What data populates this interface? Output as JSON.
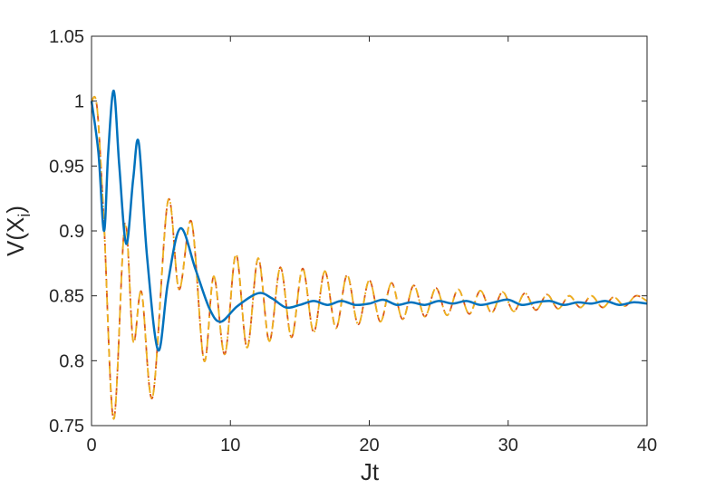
{
  "chart_data": {
    "type": "line",
    "xlabel": "Jt",
    "ylabel": {
      "base": "V(X",
      "sub": "i",
      "close": ")"
    },
    "xlim": [
      0,
      40
    ],
    "xticks": [
      0,
      10,
      20,
      30,
      40
    ],
    "ylim": [
      0.75,
      1.05
    ],
    "yticks": [
      0.75,
      0.8,
      0.85,
      0.9,
      0.95,
      1,
      1.05
    ],
    "series": [
      {
        "color": "#d95319",
        "style": "dashed",
        "x": [
          0,
          0.4,
          0.9,
          1.6,
          2.4,
          3.0,
          3.6,
          4.4,
          5.5,
          6.3,
          7.2,
          8.1,
          8.8,
          9.6,
          10.4,
          11.2,
          12.0,
          12.8,
          13.6,
          14.4,
          15.2,
          16.0,
          16.8,
          17.6,
          18.4,
          19.2,
          20.0,
          20.8,
          21.6,
          22.4,
          23.2,
          24.0,
          24.8,
          25.6,
          26.4,
          27.2,
          28.0,
          28.8,
          29.6,
          30.4,
          31.2,
          32.0,
          32.8,
          33.6,
          34.4,
          35.2,
          36.0,
          36.8,
          37.6,
          38.4,
          39.2,
          40
        ],
        "values": [
          1.0,
          0.995,
          0.905,
          0.755,
          0.905,
          0.815,
          0.853,
          0.772,
          0.923,
          0.855,
          0.907,
          0.8,
          0.865,
          0.805,
          0.882,
          0.81,
          0.879,
          0.815,
          0.872,
          0.818,
          0.871,
          0.822,
          0.869,
          0.825,
          0.866,
          0.828,
          0.862,
          0.83,
          0.86,
          0.832,
          0.858,
          0.834,
          0.856,
          0.835,
          0.855,
          0.836,
          0.854,
          0.837,
          0.853,
          0.838,
          0.852,
          0.839,
          0.851,
          0.84,
          0.85,
          0.841,
          0.85,
          0.841,
          0.849,
          0.842,
          0.85,
          0.846
        ]
      },
      {
        "color": "#edb120",
        "style": "dashdot",
        "x": [
          0,
          0.4,
          0.9,
          1.6,
          2.4,
          3.0,
          3.6,
          4.4,
          5.5,
          6.3,
          7.2,
          8.1,
          8.8,
          9.6,
          10.4,
          11.2,
          12.0,
          12.8,
          13.6,
          14.4,
          15.2,
          16.0,
          16.8,
          17.6,
          18.4,
          19.2,
          20.0,
          20.8,
          21.6,
          22.4,
          23.2,
          24.0,
          24.8,
          25.6,
          26.4,
          27.2,
          28.0,
          28.8,
          29.6,
          30.4,
          31.2,
          32.0,
          32.8,
          33.6,
          34.4,
          35.2,
          36.0,
          36.8,
          37.6,
          38.4,
          39.2,
          40
        ],
        "values": [
          1.0,
          0.995,
          0.905,
          0.755,
          0.905,
          0.815,
          0.853,
          0.772,
          0.923,
          0.855,
          0.907,
          0.8,
          0.865,
          0.805,
          0.882,
          0.81,
          0.879,
          0.815,
          0.872,
          0.818,
          0.871,
          0.822,
          0.869,
          0.825,
          0.866,
          0.828,
          0.862,
          0.83,
          0.86,
          0.832,
          0.858,
          0.834,
          0.856,
          0.835,
          0.855,
          0.836,
          0.854,
          0.837,
          0.853,
          0.838,
          0.852,
          0.839,
          0.851,
          0.84,
          0.85,
          0.841,
          0.85,
          0.841,
          0.849,
          0.842,
          0.85,
          0.846
        ]
      },
      {
        "color": "#0072bd",
        "style": "solid",
        "x": [
          0,
          0.5,
          0.9,
          1.2,
          1.6,
          2.0,
          2.5,
          3.0,
          3.4,
          4.0,
          4.8,
          5.5,
          6.4,
          7.5,
          8.5,
          9.3,
          10.5,
          12.0,
          13.0,
          14.0,
          15.0,
          16.0,
          17.0,
          18.0,
          19.0,
          20.0,
          21.0,
          22.0,
          23.0,
          24.0,
          25.0,
          26.0,
          27.0,
          28.0,
          29.0,
          30.0,
          31.0,
          32.0,
          33.0,
          34.0,
          35.0,
          36.0,
          37.0,
          38.0,
          39.0,
          40.0
        ],
        "values": [
          1.0,
          0.96,
          0.9,
          0.96,
          1.008,
          0.95,
          0.89,
          0.94,
          0.968,
          0.88,
          0.808,
          0.86,
          0.902,
          0.87,
          0.84,
          0.83,
          0.842,
          0.852,
          0.848,
          0.841,
          0.843,
          0.846,
          0.843,
          0.846,
          0.843,
          0.844,
          0.847,
          0.843,
          0.845,
          0.843,
          0.846,
          0.844,
          0.846,
          0.843,
          0.845,
          0.847,
          0.843,
          0.845,
          0.846,
          0.843,
          0.845,
          0.844,
          0.846,
          0.843,
          0.845,
          0.844
        ]
      }
    ]
  }
}
